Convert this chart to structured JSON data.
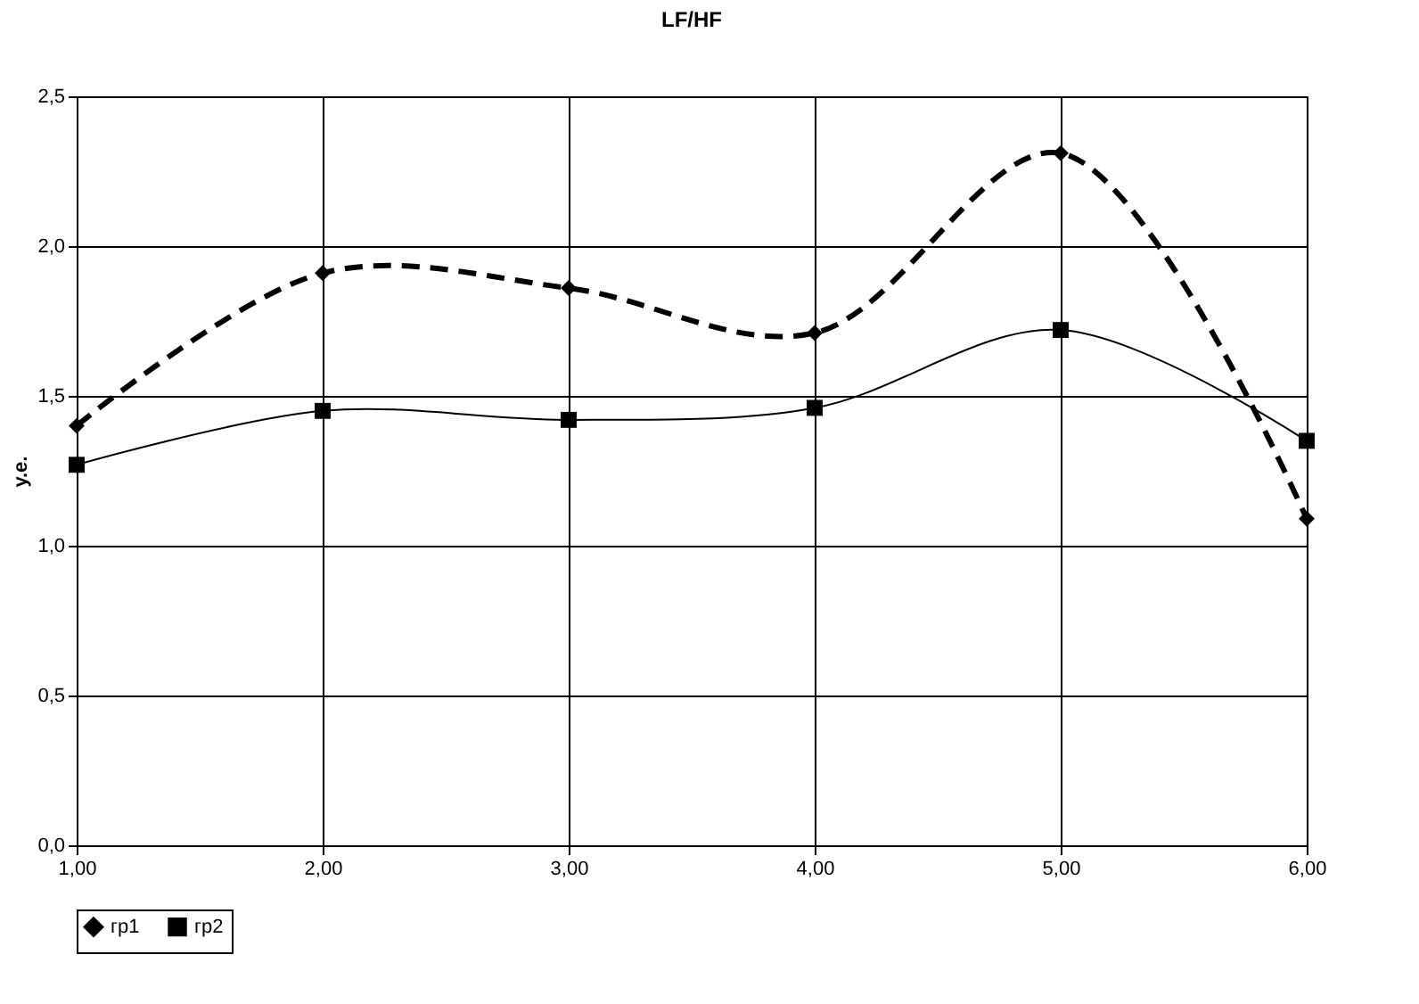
{
  "chart_data": {
    "type": "line",
    "title": "LF/HF",
    "ylabel": "у.е.",
    "x": [
      1,
      2,
      3,
      4,
      5,
      6
    ],
    "series": [
      {
        "name": "гр1",
        "color": "#000000",
        "values": [
          1.4,
          1.91,
          1.86,
          1.71,
          2.31,
          1.09
        ],
        "marker": "diamond",
        "line_style": "dashed"
      },
      {
        "name": "гр2",
        "color": "#000000",
        "values": [
          1.27,
          1.45,
          1.42,
          1.46,
          1.72,
          1.35
        ],
        "marker": "square",
        "line_style": "solid"
      }
    ],
    "xlim": [
      1,
      6
    ],
    "xticks": [
      {
        "value": 1,
        "label": "1,00"
      },
      {
        "value": 2,
        "label": "2,00"
      },
      {
        "value": 3,
        "label": "3,00"
      },
      {
        "value": 4,
        "label": "4,00"
      },
      {
        "value": 5,
        "label": "5,00"
      },
      {
        "value": 6,
        "label": "6,00"
      }
    ],
    "ylim": [
      0,
      2.5
    ],
    "yticks": [
      {
        "value": 0,
        "label": "0,0"
      },
      {
        "value": 0.5,
        "label": "0,5"
      },
      {
        "value": 1,
        "label": "1,0"
      },
      {
        "value": 1.5,
        "label": "1,5"
      },
      {
        "value": 2,
        "label": "2,0"
      },
      {
        "value": 2.5,
        "label": "2,5"
      }
    ],
    "grid": true,
    "legend": "bottom"
  }
}
